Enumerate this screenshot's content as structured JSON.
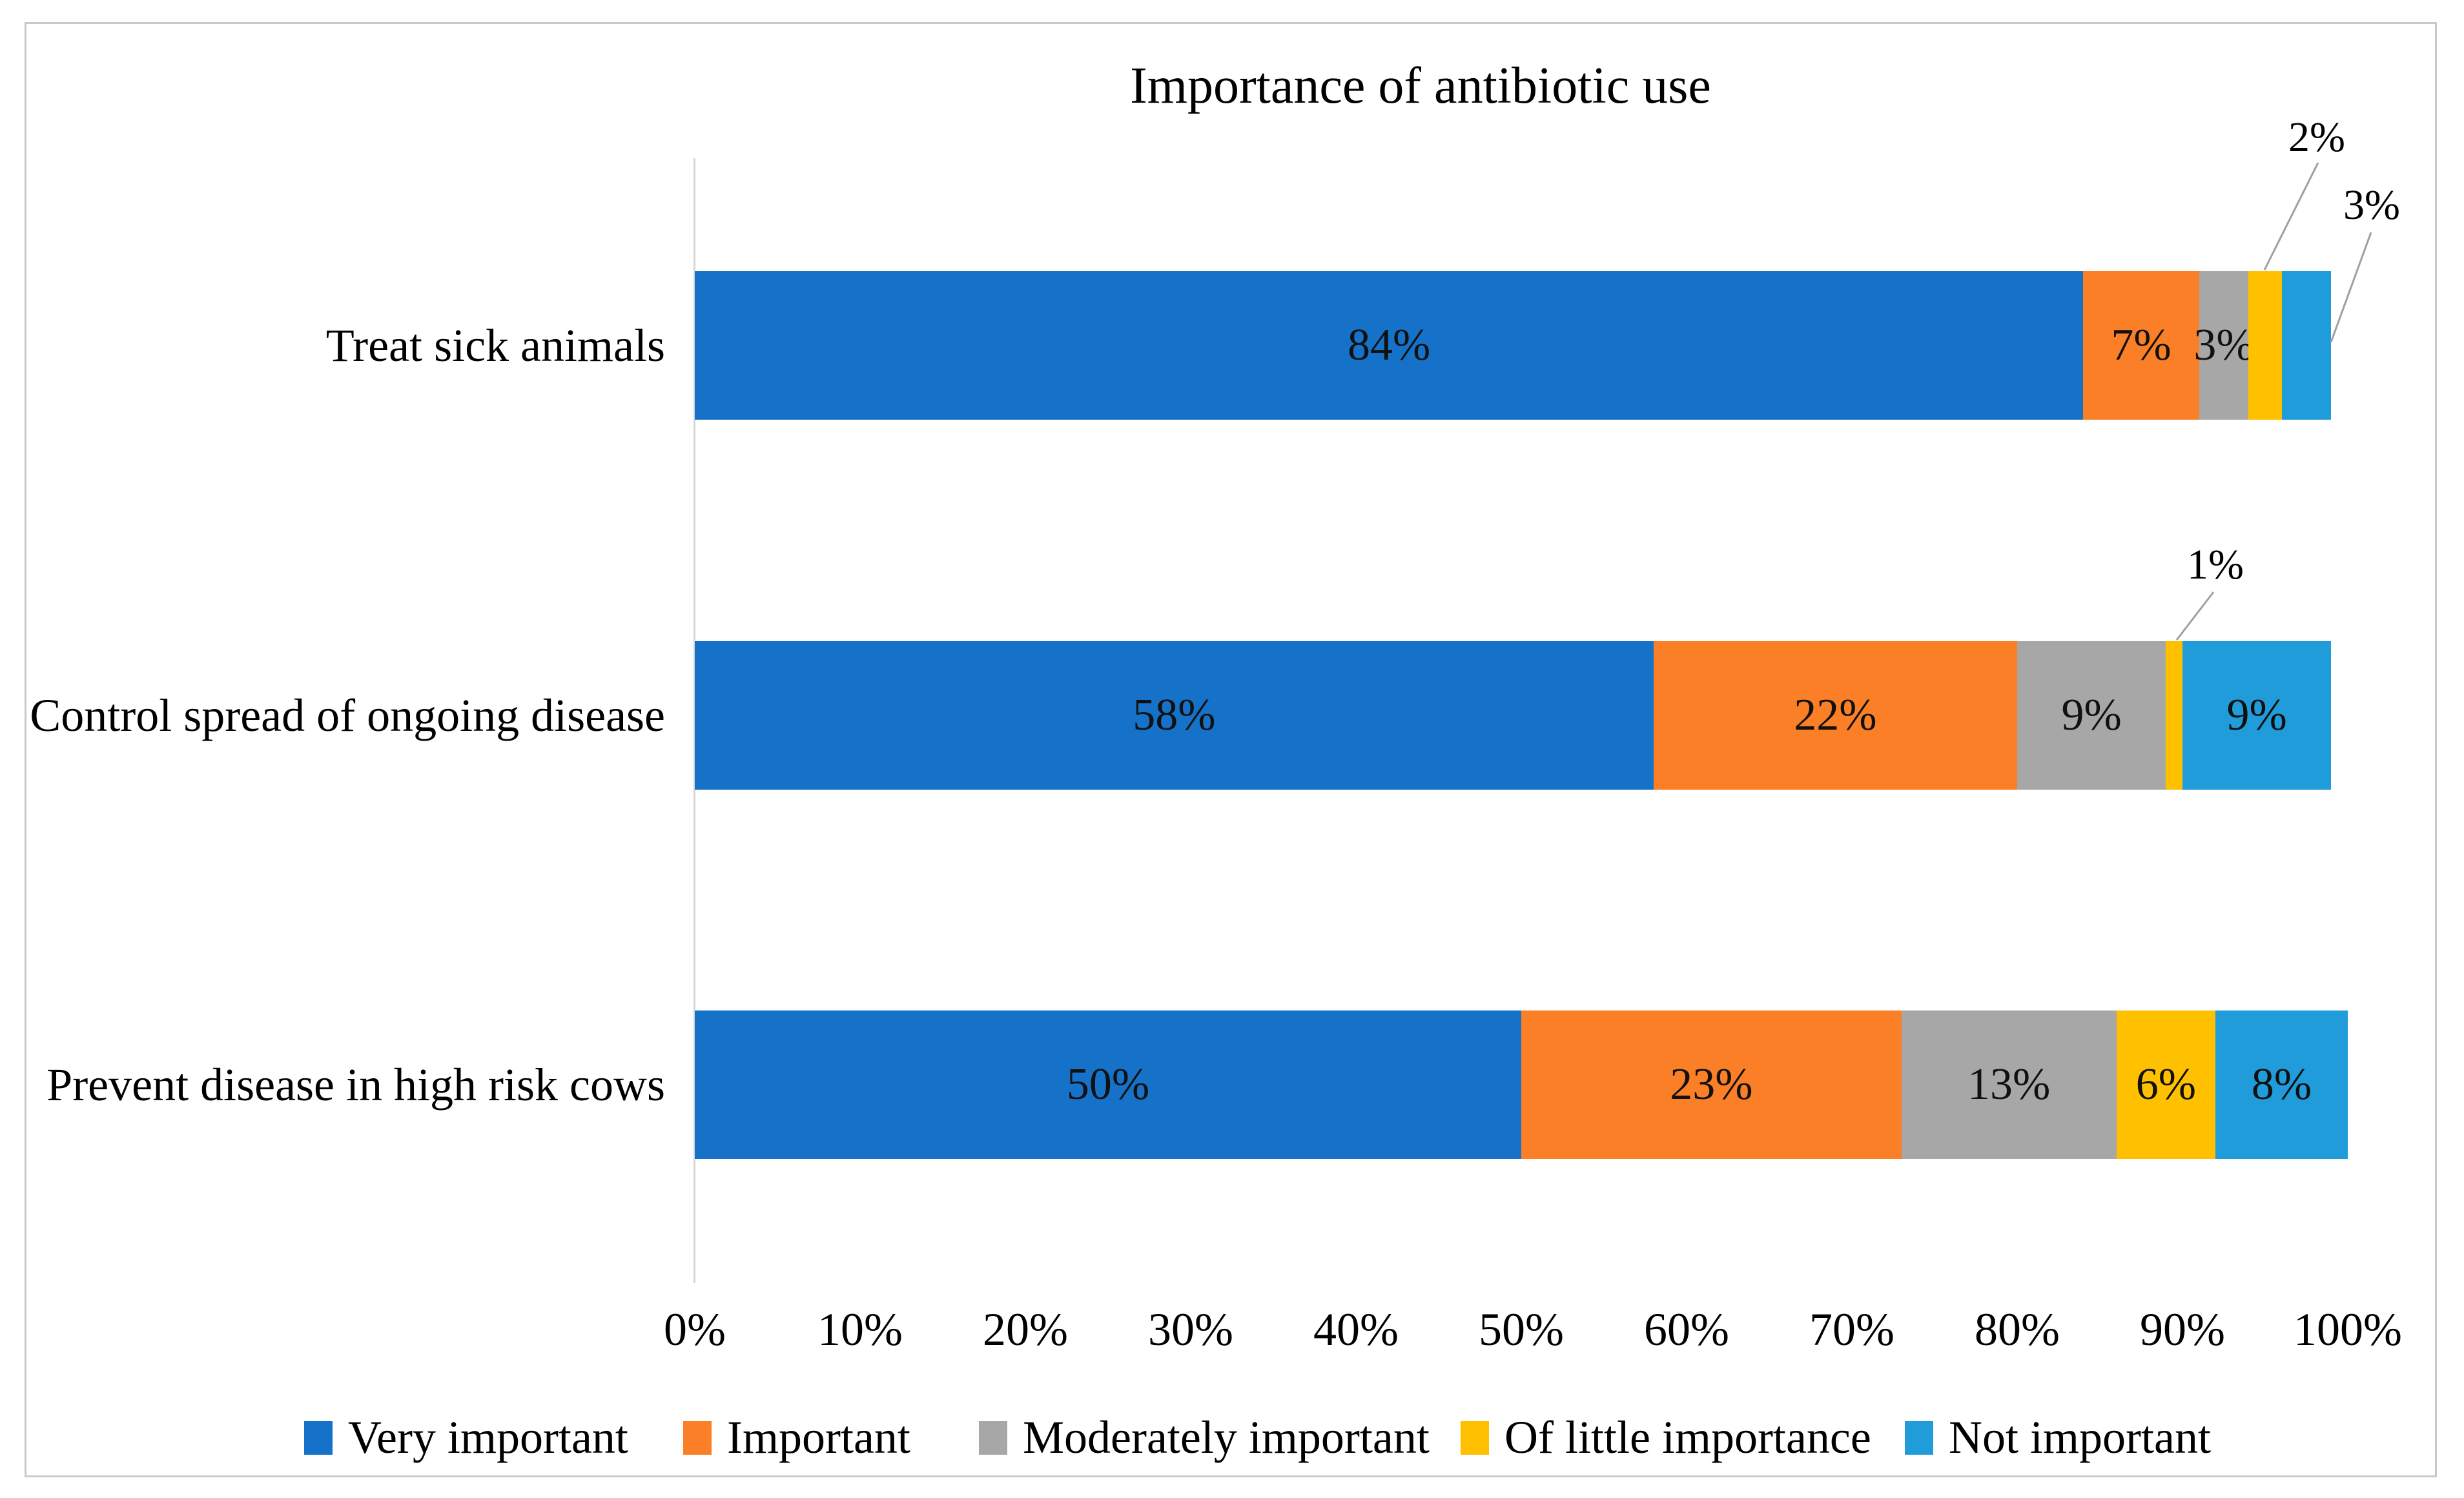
{
  "chart_data": {
    "type": "bar",
    "orientation": "horizontal",
    "stacked": true,
    "title": "Importance of antibiotic use",
    "xlabel": "",
    "ylabel": "",
    "xlim": [
      0,
      100
    ],
    "grid": false,
    "legend_position": "bottom",
    "x_ticks": [
      "0%",
      "10%",
      "20%",
      "30%",
      "40%",
      "50%",
      "60%",
      "70%",
      "80%",
      "90%",
      "100%"
    ],
    "categories": [
      "Treat sick animals",
      "Control spread of ongoing disease",
      "Prevent disease in high risk cows"
    ],
    "series": [
      {
        "name": "Very important",
        "color": "#1572C8",
        "values": [
          84,
          58,
          50
        ]
      },
      {
        "name": "Important",
        "color": "#FA7F26",
        "values": [
          7,
          22,
          23
        ]
      },
      {
        "name": "Moderately important",
        "color": "#A7A7A7",
        "values": [
          3,
          9,
          13
        ]
      },
      {
        "name": "Of little importance",
        "color": "#FFC000",
        "values": [
          2,
          1,
          6
        ]
      },
      {
        "name": "Not important",
        "color": "#1F9CD9",
        "values": [
          3,
          9,
          8
        ]
      }
    ],
    "segment_labels": [
      [
        "84%",
        "7%",
        "3%",
        null,
        null
      ],
      [
        "58%",
        "22%",
        "9%",
        null,
        "9%"
      ],
      [
        "50%",
        "23%",
        "13%",
        "6%",
        "8%"
      ]
    ],
    "callouts": [
      {
        "category": "Treat sick animals",
        "series": "Of little importance",
        "text": "2%",
        "label_x": 3588,
        "label_y": 213,
        "line": [
          3590,
          252,
          3507,
          418
        ]
      },
      {
        "category": "Treat sick animals",
        "series": "Not important",
        "text": "3%",
        "label_x": 3673,
        "label_y": 318,
        "line": [
          3672,
          360,
          3610,
          530
        ]
      },
      {
        "category": "Control spread of ongoing disease",
        "series": "Of little importance",
        "text": "1%",
        "label_x": 3431,
        "label_y": 875,
        "line": [
          3428,
          917,
          3371,
          991
        ]
      }
    ]
  }
}
